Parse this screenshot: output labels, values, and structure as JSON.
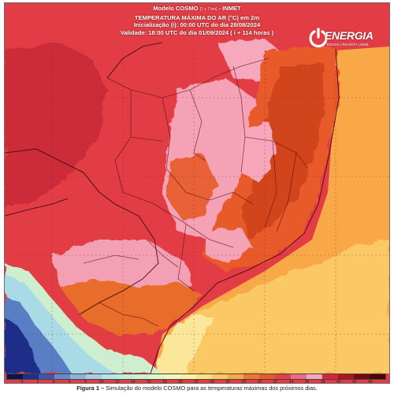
{
  "header": {
    "line1_main": "Modelo COSMO",
    "line1_small": "[7 x 7 km]",
    "line1_tail": "- INMET",
    "line2": "TEMPERATURA MÁXIMA DO AR (°C) em 2m",
    "line3": "Inicialização (i): 00:00 UTC do dia 28/08/2024",
    "line4": "Validade: 18:00 UTC do dia 01/09/2024 ( i + 114 horas )"
  },
  "logo": {
    "name": "ENERGIA",
    "subtitle": "EM DIA | REVISTA | WEB",
    "icon": "power-button-icon"
  },
  "legend": {
    "ticks": [
      "6",
      "2",
      "4",
      "6",
      "8",
      "10",
      "12",
      "14",
      "16",
      "18",
      "20",
      "22",
      "24",
      "26",
      "28",
      "30",
      "32",
      "34",
      "36",
      "38",
      "40",
      "42",
      "44"
    ],
    "colors": [
      "#0a1448",
      "#1f2f88",
      "#3d55b0",
      "#6a86cc",
      "#8fb0dc",
      "#a9cde6",
      "#b8e4ec",
      "#bfeede",
      "#cdf2cc",
      "#e2f5c2",
      "#f4f6bc",
      "#fbf0a2",
      "#fde282",
      "#fcc760",
      "#f8a745",
      "#f0772f",
      "#e85a2a",
      "#e83e48",
      "#f06a88",
      "#f7a4be",
      "#d8243a",
      "#b0141e",
      "#7a0710",
      "#4a0206"
    ]
  },
  "caption": {
    "label": "Figura 1 –",
    "text": "Simulação do modelo COSMO para as temperaturas máximas dos próximos dias."
  }
}
